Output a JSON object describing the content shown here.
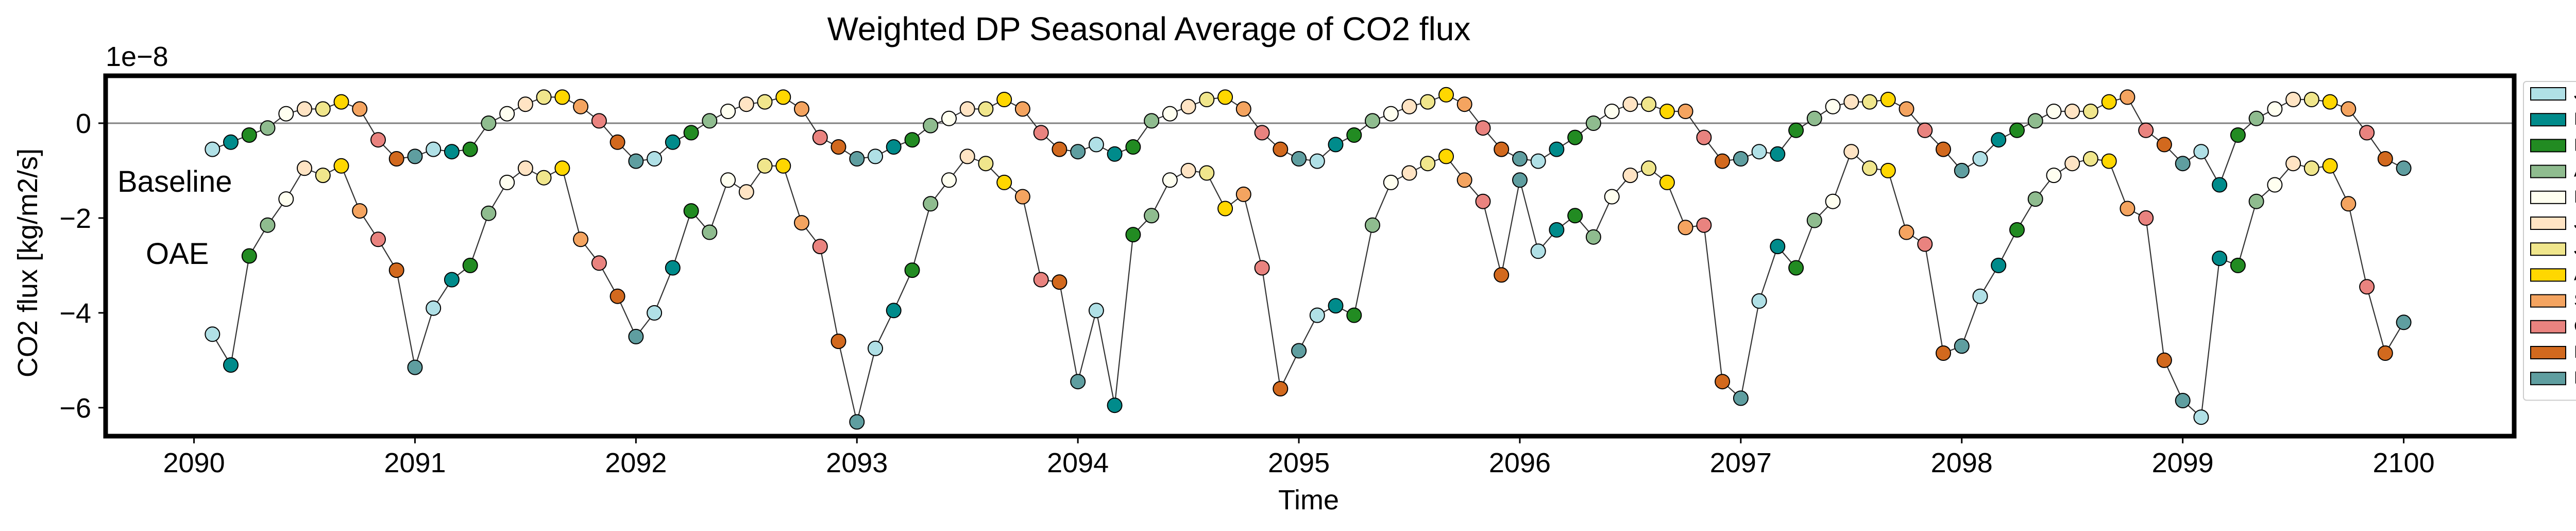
{
  "chart_data": {
    "type": "scatter",
    "title": "Weighted DP Seasonal Average of CO2 flux",
    "xlabel": "Time",
    "ylabel": "CO2 flux [kg/m2/s]",
    "y_offset_text": "1e−8",
    "xlim": [
      2089.6,
      2100.5
    ],
    "ylim": [
      -6.6,
      1.0
    ],
    "x_ticks": [
      2090,
      2091,
      2092,
      2093,
      2094,
      2095,
      2096,
      2097,
      2098,
      2099,
      2100
    ],
    "x_tick_labels": [
      "2090",
      "2091",
      "2092",
      "2093",
      "2094",
      "2095",
      "2096",
      "2097",
      "2098",
      "2099",
      "2100"
    ],
    "y_ticks": [
      0,
      -2,
      -4,
      -6
    ],
    "y_tick_labels": [
      "0",
      "−2",
      "−4",
      "−6"
    ],
    "hline_y": 0,
    "legend_position": "right-outside",
    "months": [
      "Jan",
      "Feb",
      "Mar",
      "Apr",
      "May",
      "June",
      "July",
      "Aug",
      "Sept",
      "Oct",
      "Nov",
      "Dec"
    ],
    "month_colors": [
      "#b0e0e6",
      "#008b8b",
      "#228b22",
      "#8fbc8f",
      "#fffff0",
      "#ffe4c4",
      "#f0e68c",
      "#ffd700",
      "#f4a460",
      "#e9837f",
      "#d2691e",
      "#5f9ea0"
    ],
    "annotations": [
      "Baseline",
      "OAE"
    ],
    "x_start_year": 2090,
    "series": [
      {
        "name": "Baseline",
        "values": [
          -0.55,
          -0.4,
          -0.25,
          -0.1,
          0.2,
          0.3,
          0.3,
          0.45,
          0.3,
          -0.35,
          -0.75,
          -0.7,
          -0.55,
          -0.6,
          -0.55,
          0.0,
          0.2,
          0.4,
          0.55,
          0.55,
          0.35,
          0.05,
          -0.4,
          -0.8,
          -0.75,
          -0.4,
          -0.2,
          0.05,
          0.25,
          0.4,
          0.45,
          0.55,
          0.3,
          -0.3,
          -0.5,
          -0.75,
          -0.7,
          -0.5,
          -0.35,
          -0.05,
          0.1,
          0.3,
          0.3,
          0.5,
          0.3,
          -0.2,
          -0.55,
          -0.6,
          -0.45,
          -0.65,
          -0.5,
          0.05,
          0.2,
          0.35,
          0.5,
          0.55,
          0.3,
          -0.2,
          -0.55,
          -0.75,
          -0.8,
          -0.45,
          -0.25,
          0.05,
          0.2,
          0.35,
          0.45,
          0.6,
          0.4,
          -0.1,
          -0.55,
          -0.75,
          -0.8,
          -0.55,
          -0.3,
          0.0,
          0.25,
          0.4,
          0.4,
          0.25,
          0.25,
          -0.3,
          -0.8,
          -0.75,
          -0.6,
          -0.65,
          -0.15,
          0.1,
          0.35,
          0.45,
          0.45,
          0.5,
          0.3,
          -0.15,
          -0.55,
          -1.0,
          -0.75,
          -0.35,
          -0.15,
          0.05,
          0.25,
          0.25,
          0.25,
          0.45,
          0.55,
          -0.15,
          -0.45,
          -0.85,
          -0.6,
          -1.3,
          -0.25,
          0.1,
          0.3,
          0.5,
          0.5,
          0.45,
          0.3,
          -0.2,
          -0.75,
          -0.95
        ]
      },
      {
        "name": "OAE",
        "values": [
          -4.45,
          -5.1,
          -2.8,
          -2.15,
          -1.6,
          -0.95,
          -1.1,
          -0.9,
          -1.85,
          -2.45,
          -3.1,
          -5.15,
          -3.9,
          -3.3,
          -3.0,
          -1.9,
          -1.25,
          -0.95,
          -1.15,
          -0.95,
          -2.45,
          -2.95,
          -3.65,
          -4.5,
          -4.0,
          -3.05,
          -1.85,
          -2.3,
          -1.2,
          -1.45,
          -0.9,
          -0.9,
          -2.1,
          -2.6,
          -4.6,
          -6.3,
          -4.75,
          -3.95,
          -3.1,
          -1.7,
          -1.2,
          -0.7,
          -0.85,
          -1.25,
          -1.55,
          -3.3,
          -3.35,
          -5.45,
          -3.95,
          -5.95,
          -2.35,
          -1.95,
          -1.2,
          -1.0,
          -1.05,
          -1.8,
          -1.5,
          -3.05,
          -5.6,
          -4.8,
          -4.05,
          -3.85,
          -4.05,
          -2.15,
          -1.25,
          -1.05,
          -0.85,
          -0.7,
          -1.2,
          -1.65,
          -3.2,
          -1.2,
          -2.7,
          -2.25,
          -1.95,
          -2.4,
          -1.55,
          -1.1,
          -0.95,
          -1.25,
          -2.2,
          -2.15,
          -5.45,
          -5.8,
          -3.75,
          -2.6,
          -3.05,
          -2.05,
          -1.65,
          -0.6,
          -0.95,
          -1.0,
          -2.3,
          -2.55,
          -4.85,
          -4.7,
          -3.65,
          -3.0,
          -2.25,
          -1.6,
          -1.1,
          -0.85,
          -0.75,
          -0.8,
          -1.8,
          -2.0,
          -5.0,
          -5.85,
          -6.2,
          -2.85,
          -3.0,
          -1.65,
          -1.3,
          -0.85,
          -0.95,
          -0.9,
          -1.7,
          -3.45,
          -4.85,
          -4.2
        ]
      }
    ]
  }
}
